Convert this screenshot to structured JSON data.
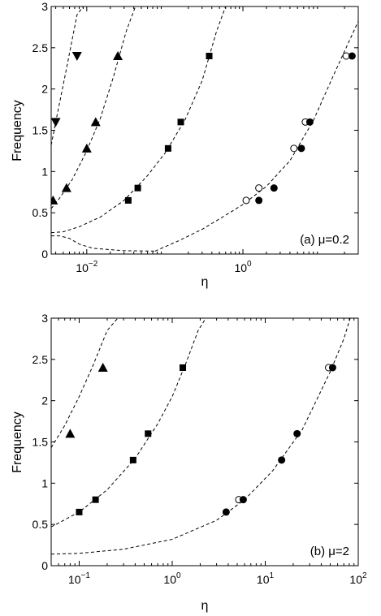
{
  "chart_data": [
    {
      "type": "scatter",
      "panel_label": "(a) μ=0.2",
      "xlabel": "η",
      "ylabel": "Frequency",
      "xscale": "log",
      "xlim": [
        0.0035,
        30
      ],
      "ylim": [
        0,
        3
      ],
      "xticks": [
        0.01,
        1
      ],
      "xtick_labels": [
        {
          "base": "10",
          "exp": "−2"
        },
        {
          "base": "10",
          "exp": "0"
        }
      ],
      "yticks": [
        0,
        0.5,
        1,
        1.5,
        2,
        2.5,
        3
      ],
      "ytick_labels": [
        "0",
        "0.5",
        "1",
        "1.5",
        "2",
        "2.5",
        "3"
      ],
      "grid": false,
      "series": [
        {
          "marker": "triangle-down",
          "x": [
            0.004,
            0.0075
          ],
          "y": [
            1.6,
            2.4
          ]
        },
        {
          "marker": "triangle-up",
          "x": [
            0.0037,
            0.0055,
            0.01,
            0.013,
            0.025
          ],
          "y": [
            0.65,
            0.8,
            1.28,
            1.6,
            2.4
          ]
        },
        {
          "marker": "square",
          "x": [
            0.034,
            0.045,
            0.11,
            0.16,
            0.37
          ],
          "y": [
            0.65,
            0.8,
            1.28,
            1.6,
            2.4
          ]
        },
        {
          "marker": "circle-open",
          "x": [
            1.1,
            1.6,
            4.5,
            6.3,
            21
          ],
          "y": [
            0.65,
            0.8,
            1.28,
            1.6,
            2.4
          ]
        },
        {
          "marker": "circle-filled",
          "x": [
            1.6,
            2.5,
            5.6,
            7.2,
            25
          ],
          "y": [
            0.65,
            0.8,
            1.28,
            1.6,
            2.4
          ]
        }
      ],
      "dashed_curves": [
        {
          "x": [
            0.0035,
            0.004,
            0.0055,
            0.0075,
            0.009
          ],
          "y": [
            1.32,
            1.6,
            2.25,
            2.9,
            3.0
          ]
        },
        {
          "x": [
            0.0035,
            0.0045,
            0.0065,
            0.01,
            0.015,
            0.022,
            0.032,
            0.042
          ],
          "y": [
            0.55,
            0.68,
            0.9,
            1.25,
            1.65,
            2.15,
            2.7,
            3.0
          ]
        },
        {
          "x": [
            0.0035,
            0.005,
            0.008,
            0.015,
            0.03,
            0.06,
            0.1,
            0.18,
            0.3,
            0.46,
            0.6
          ],
          "y": [
            0.26,
            0.27,
            0.33,
            0.45,
            0.65,
            0.95,
            1.22,
            1.62,
            2.1,
            2.7,
            3.0
          ]
        },
        {
          "x": [
            0.0035,
            0.0045,
            0.006,
            0.008,
            0.012,
            0.03,
            0.075
          ],
          "y": [
            0.22,
            0.22,
            0.19,
            0.12,
            0.07,
            0.04,
            0.035
          ]
        },
        {
          "x": [
            0.075,
            0.15,
            0.3,
            0.6,
            1.0,
            2.0,
            4.0,
            8.0,
            15,
            30
          ],
          "y": [
            0.035,
            0.16,
            0.3,
            0.47,
            0.6,
            0.82,
            1.13,
            1.62,
            2.2,
            2.82
          ]
        }
      ]
    },
    {
      "type": "scatter",
      "panel_label": "(b) μ=2",
      "xlabel": "η",
      "ylabel": "Frequency",
      "xscale": "log",
      "xlim": [
        0.05,
        100
      ],
      "ylim": [
        0,
        3
      ],
      "xticks": [
        0.1,
        1,
        10,
        100
      ],
      "xtick_labels": [
        {
          "base": "10",
          "exp": "−1"
        },
        {
          "base": "10",
          "exp": "0"
        },
        {
          "base": "10",
          "exp": "1"
        },
        {
          "base": "10",
          "exp": "2"
        }
      ],
      "yticks": [
        0,
        0.5,
        1,
        1.5,
        2,
        2.5,
        3
      ],
      "ytick_labels": [
        "0",
        "0.5",
        "1",
        "1.5",
        "2",
        "2.5",
        "3"
      ],
      "grid": false,
      "series": [
        {
          "marker": "triangle-up",
          "x": [
            0.08,
            0.18
          ],
          "y": [
            1.6,
            2.4
          ]
        },
        {
          "marker": "square",
          "x": [
            0.1,
            0.15,
            0.38,
            0.55,
            1.3
          ],
          "y": [
            0.65,
            0.8,
            1.28,
            1.6,
            2.4
          ]
        },
        {
          "marker": "circle-open",
          "x": [
            5.2,
            48
          ],
          "y": [
            0.8,
            2.4
          ]
        },
        {
          "marker": "circle-filled",
          "x": [
            3.8,
            5.8,
            15,
            22,
            53
          ],
          "y": [
            0.65,
            0.8,
            1.28,
            1.6,
            2.4
          ]
        }
      ],
      "dashed_curves": [
        {
          "x": [
            0.05,
            0.07,
            0.1,
            0.14,
            0.2,
            0.26
          ],
          "y": [
            1.43,
            1.7,
            2.05,
            2.42,
            2.85,
            3.0
          ]
        },
        {
          "x": [
            0.05,
            0.1,
            0.2,
            0.4,
            0.7,
            1.0,
            1.4,
            1.9,
            2.3
          ],
          "y": [
            0.47,
            0.65,
            0.92,
            1.3,
            1.72,
            2.05,
            2.45,
            2.85,
            3.0
          ]
        },
        {
          "x": [
            0.05,
            0.1,
            0.3,
            1.0,
            3.0,
            6.0,
            12,
            25,
            50,
            70,
            82
          ],
          "y": [
            0.14,
            0.15,
            0.2,
            0.32,
            0.55,
            0.8,
            1.15,
            1.65,
            2.35,
            2.75,
            3.0
          ]
        }
      ]
    }
  ]
}
